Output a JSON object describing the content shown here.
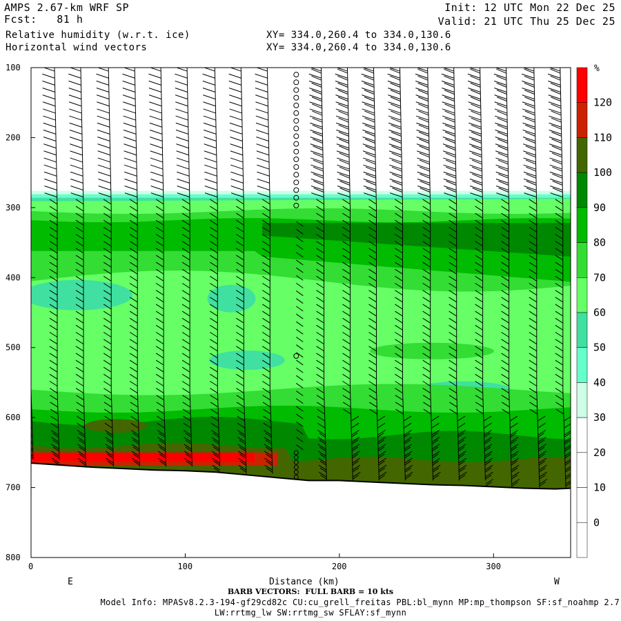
{
  "header": {
    "model": "AMPS 2.67-km WRF SP",
    "forecast": "Fcst:   81 h",
    "field1": "Relative humidity (w.r.t. ice)",
    "field2": "Horizontal wind vectors",
    "init": "Init: 12 UTC Mon 22 Dec 25",
    "valid": "Valid: 21 UTC Thu 25 Dec 25",
    "xy1": "XY= 334.0,260.4 to 334.0,130.6",
    "xy2": "XY= 334.0,260.4 to 334.0,130.6"
  },
  "footer": {
    "barb_note": "BARB VECTORS:  FULL BARB = 10 kts",
    "model_info": "Model Info: MPASv8.2.3-194-gf29cd82c CU:cu_grell_freitas PBL:bl_mynn MP:mp_thompson SF:sf_noahmp 2.7",
    "model_info2": "LW:rrtmg_lw SW:rrtmg_sw SFLAY:sf_mynn"
  },
  "chart_data": {
    "type": "heatmap",
    "title": "Relative humidity (w.r.t. ice)",
    "xlabel": "Distance (km)",
    "ylabel": "",
    "xlim": [
      0,
      350
    ],
    "ylim": [
      800,
      100
    ],
    "x_ticks": [
      0,
      100,
      200,
      300
    ],
    "y_ticks": [
      100,
      200,
      300,
      400,
      500,
      600,
      700,
      800
    ],
    "x_end_labels": {
      "left": "E",
      "right": "W"
    },
    "colorbar": {
      "unit": "%",
      "levels": [
        0,
        10,
        20,
        30,
        40,
        50,
        60,
        70,
        80,
        90,
        100,
        110,
        120
      ],
      "colors": [
        "#ffffff",
        "#ffffff",
        "#ffffff",
        "#ffffff",
        "#ccffe6",
        "#66ffcc",
        "#40e0a0",
        "#66ff66",
        "#33dd33",
        "#00bb00",
        "#008800",
        "#446600",
        "#cc2200",
        "#ff0000"
      ]
    },
    "terrain": {
      "x": [
        0,
        20,
        40,
        60,
        80,
        100,
        120,
        140,
        160,
        180,
        200,
        220,
        240,
        260,
        280,
        300,
        320,
        340,
        350
      ],
      "pressure": [
        665,
        668,
        671,
        673,
        675,
        676,
        678,
        682,
        686,
        690,
        690,
        692,
        694,
        696,
        697,
        699,
        701,
        702,
        701
      ]
    },
    "rh_layers": [
      {
        "range": "60-70",
        "desc": "dominant from ~285 hPa to surface"
      },
      {
        "range": "70-80",
        "desc": "band 310-330 hPa and 520-580 hPa"
      },
      {
        "range": "80-90",
        "desc": "band 330-400 hPa and 580-650 hPa"
      },
      {
        "range": "90-100",
        "desc": "band 590-640 hPa, near-surface 650-690 hPa"
      },
      {
        "range": "100-110",
        "desc": "near surface 655-700 hPa"
      },
      {
        "range": "110-130",
        "desc": "thin layer 650-670 hPa from x=0 to ~150 km"
      },
      {
        "range": "40-60",
        "desc": "patches near 400-440 hPa and 510-530 hPa"
      },
      {
        "range": "0-30",
        "desc": "dry above ~285 hPa"
      }
    ],
    "wind_barbs": {
      "x_columns": [
        0,
        17,
        34,
        52,
        69,
        86,
        103,
        121,
        138,
        155,
        172,
        190,
        207,
        224,
        241,
        259,
        276,
        293,
        310,
        328,
        345
      ],
      "calm_column_x": 172
    }
  }
}
